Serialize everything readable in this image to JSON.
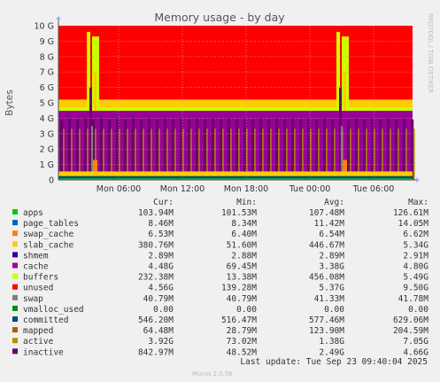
{
  "chart_data": {
    "type": "area",
    "title": "Memory usage - by day",
    "ylabel": "Bytes",
    "side_label": "RRDTOOL / TOBI OETIKER",
    "y_ticks": [
      "0",
      "1 G",
      "2 G",
      "3 G",
      "4 G",
      "5 G",
      "6 G",
      "7 G",
      "8 G",
      "9 G",
      "10 G"
    ],
    "ylim": [
      0,
      10
    ],
    "x_ticks": [
      "Mon 06:00",
      "Mon 12:00",
      "Mon 18:00",
      "Tue 00:00",
      "Tue 06:00"
    ],
    "grid": true,
    "legend_headers": [
      "Cur:",
      "Min:",
      "Avg:",
      "Max:"
    ],
    "legend": [
      {
        "name": "apps",
        "color": "#00cc00",
        "cur": "103.94M",
        "min": "101.53M",
        "avg": "107.48M",
        "max": "126.61M"
      },
      {
        "name": "page_tables",
        "color": "#0066b3",
        "cur": "8.46M",
        "min": "8.34M",
        "avg": "11.42M",
        "max": "14.05M"
      },
      {
        "name": "swap_cache",
        "color": "#ff8000",
        "cur": "6.53M",
        "min": "6.40M",
        "avg": "6.54M",
        "max": "6.62M"
      },
      {
        "name": "slab_cache",
        "color": "#ffcc00",
        "cur": "380.76M",
        "min": "51.60M",
        "avg": "446.67M",
        "max": "5.34G"
      },
      {
        "name": "shmem",
        "color": "#330099",
        "cur": "2.89M",
        "min": "2.88M",
        "avg": "2.89M",
        "max": "2.91M"
      },
      {
        "name": "cache",
        "color": "#990099",
        "cur": "4.48G",
        "min": "69.45M",
        "avg": "3.38G",
        "max": "4.80G"
      },
      {
        "name": "buffers",
        "color": "#ccff00",
        "cur": "232.38M",
        "min": "13.38M",
        "avg": "456.08M",
        "max": "5.49G"
      },
      {
        "name": "unused",
        "color": "#ff0000",
        "cur": "4.56G",
        "min": "139.28M",
        "avg": "5.37G",
        "max": "9.50G"
      },
      {
        "name": "swap",
        "color": "#808080",
        "cur": "40.79M",
        "min": "40.79M",
        "avg": "41.33M",
        "max": "41.78M"
      },
      {
        "name": "vmalloc_used",
        "color": "#008f00",
        "cur": "0.00",
        "min": "0.00",
        "avg": "0.00",
        "max": "0.00"
      },
      {
        "name": "committed",
        "color": "#00487d",
        "cur": "546.20M",
        "min": "516.47M",
        "avg": "577.46M",
        "max": "629.06M"
      },
      {
        "name": "mapped",
        "color": "#b35a00",
        "cur": "64.48M",
        "min": "28.79M",
        "avg": "123.90M",
        "max": "204.59M"
      },
      {
        "name": "active",
        "color": "#b38f00",
        "cur": "3.92G",
        "min": "73.02M",
        "avg": "1.38G",
        "max": "7.05G"
      },
      {
        "name": "inactive",
        "color": "#6b006b",
        "cur": "842.97M",
        "min": "48.52M",
        "avg": "2.49G",
        "max": "4.66G"
      }
    ],
    "last_update": "Last update: Tue Sep 23 09:40:04 2025",
    "footer": "Munin 2.0.56",
    "levels": {
      "total": 10,
      "apps": 0.1,
      "page_tables": 0.01,
      "swap_cache": 0.01,
      "shmem": 0.003,
      "cache_level": 4.48,
      "buffers_level": 0.23,
      "slab_level": 0.38,
      "active_level": 3.92,
      "inactive_level": 0.84,
      "committed": 0.55,
      "mapped": 0.06,
      "swap": 0.04
    },
    "spikes": [
      {
        "at": "Mon 03:30",
        "buffers": 5.49,
        "slab": 4.6
      },
      {
        "at": "Tue 03:00",
        "buffers": 5.3,
        "slab": 5.34
      }
    ]
  }
}
